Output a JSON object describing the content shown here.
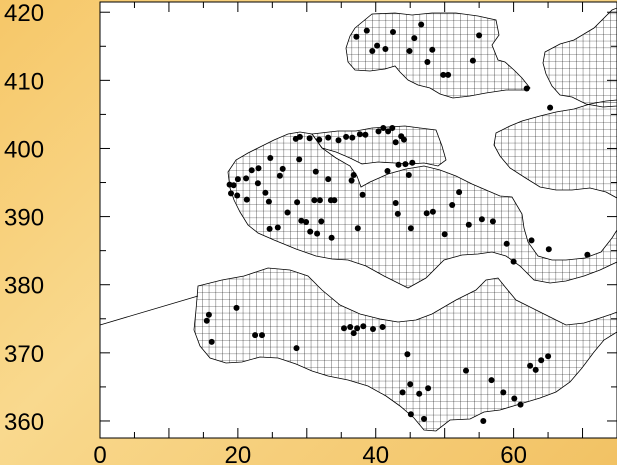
{
  "map": {
    "y_ticks": [
      {
        "value": 360,
        "label": "360"
      },
      {
        "value": 370,
        "label": "370"
      },
      {
        "value": 380,
        "label": "380"
      },
      {
        "value": 390,
        "label": "390"
      },
      {
        "value": 400,
        "label": "400"
      },
      {
        "value": 410,
        "label": "410"
      },
      {
        "value": 420,
        "label": "420"
      }
    ],
    "x_ticks": [
      {
        "value": 0,
        "label": "0"
      },
      {
        "value": 20,
        "label": "20"
      },
      {
        "value": 40,
        "label": "40"
      },
      {
        "value": 60,
        "label": "60"
      }
    ],
    "x_range": [
      0,
      75
    ],
    "y_range": [
      357.5,
      421.5
    ],
    "grid_cell_km": 1,
    "colors": {
      "frame": "#f6c768",
      "land_fill": "#ffffff",
      "grid": "#000000",
      "sites": "#000000"
    },
    "sites": [
      [
        37.2,
        416.4
      ],
      [
        38.7,
        417.3
      ],
      [
        39.5,
        414.3
      ],
      [
        40.2,
        415.1
      ],
      [
        41.4,
        414.6
      ],
      [
        42.5,
        417.1
      ],
      [
        44.9,
        414.3
      ],
      [
        45.6,
        416.2
      ],
      [
        46.6,
        418.2
      ],
      [
        47.5,
        412.7
      ],
      [
        48.2,
        414.5
      ],
      [
        49.8,
        410.8
      ],
      [
        50.5,
        410.8
      ],
      [
        54.1,
        412.9
      ],
      [
        55.0,
        416.6
      ],
      [
        61.9,
        408.8
      ],
      [
        65.3,
        406.0
      ],
      [
        28.4,
        401.4
      ],
      [
        29.0,
        401.7
      ],
      [
        30.4,
        401.5
      ],
      [
        31.8,
        401.3
      ],
      [
        33.1,
        401.6
      ],
      [
        34.6,
        401.2
      ],
      [
        35.7,
        401.7
      ],
      [
        36.6,
        401.6
      ],
      [
        37.7,
        402.1
      ],
      [
        38.5,
        402.0
      ],
      [
        40.4,
        402.5
      ],
      [
        41.1,
        403.0
      ],
      [
        41.8,
        402.5
      ],
      [
        42.4,
        403.0
      ],
      [
        43.7,
        401.8
      ],
      [
        44.1,
        401.3
      ],
      [
        42.9,
        400.9
      ],
      [
        28.9,
        398.4
      ],
      [
        26.5,
        397.0
      ],
      [
        24.7,
        398.6
      ],
      [
        23.0,
        397.1
      ],
      [
        22.0,
        396.8
      ],
      [
        21.2,
        395.6
      ],
      [
        20.0,
        395.5
      ],
      [
        19.4,
        394.6
      ],
      [
        19.0,
        393.4
      ],
      [
        18.8,
        394.7
      ],
      [
        19.9,
        393.1
      ],
      [
        21.3,
        392.5
      ],
      [
        22.9,
        394.9
      ],
      [
        24.0,
        393.5
      ],
      [
        26.1,
        396.0
      ],
      [
        31.3,
        396.6
      ],
      [
        33.1,
        395.5
      ],
      [
        36.8,
        396.1
      ],
      [
        36.5,
        395.3
      ],
      [
        43.3,
        397.6
      ],
      [
        44.3,
        397.7
      ],
      [
        45.3,
        397.9
      ],
      [
        44.8,
        396.1
      ],
      [
        41.7,
        396.7
      ],
      [
        24.5,
        392.2
      ],
      [
        24.6,
        388.2
      ],
      [
        25.8,
        388.4
      ],
      [
        27.2,
        390.6
      ],
      [
        28.6,
        392.1
      ],
      [
        29.2,
        389.4
      ],
      [
        29.9,
        389.2
      ],
      [
        31.1,
        392.4
      ],
      [
        31.9,
        392.4
      ],
      [
        33.5,
        392.4
      ],
      [
        34.0,
        392.4
      ],
      [
        30.5,
        387.8
      ],
      [
        31.5,
        387.5
      ],
      [
        32.1,
        389.3
      ],
      [
        33.6,
        386.9
      ],
      [
        37.4,
        388.3
      ],
      [
        38.1,
        393.2
      ],
      [
        42.9,
        392.0
      ],
      [
        43.2,
        390.4
      ],
      [
        45.1,
        388.3
      ],
      [
        47.4,
        390.5
      ],
      [
        48.3,
        390.7
      ],
      [
        50.0,
        387.4
      ],
      [
        51.1,
        391.7
      ],
      [
        52.1,
        393.6
      ],
      [
        53.5,
        388.8
      ],
      [
        55.4,
        389.6
      ],
      [
        57.0,
        389.3
      ],
      [
        59.0,
        386.0
      ],
      [
        60.0,
        383.4
      ],
      [
        62.6,
        386.5
      ],
      [
        65.1,
        385.2
      ],
      [
        70.7,
        384.4
      ],
      [
        15.5,
        374.7
      ],
      [
        15.8,
        375.6
      ],
      [
        16.2,
        371.6
      ],
      [
        19.8,
        376.6
      ],
      [
        22.5,
        372.6
      ],
      [
        23.5,
        372.6
      ],
      [
        28.5,
        370.7
      ],
      [
        35.4,
        373.6
      ],
      [
        36.3,
        373.8
      ],
      [
        36.8,
        372.9
      ],
      [
        37.3,
        373.6
      ],
      [
        38.2,
        373.9
      ],
      [
        39.6,
        373.5
      ],
      [
        41.0,
        373.8
      ],
      [
        44.6,
        369.8
      ],
      [
        43.9,
        364.2
      ],
      [
        45.0,
        365.4
      ],
      [
        46.3,
        364.0
      ],
      [
        47.6,
        364.8
      ],
      [
        45.1,
        361.0
      ],
      [
        47.0,
        360.3
      ],
      [
        53.1,
        367.4
      ],
      [
        55.6,
        360.0
      ],
      [
        56.8,
        366.0
      ],
      [
        58.5,
        364.2
      ],
      [
        60.1,
        363.3
      ],
      [
        61.0,
        362.4
      ],
      [
        62.4,
        368.1
      ],
      [
        63.2,
        367.5
      ],
      [
        64.0,
        368.9
      ],
      [
        65.0,
        369.5
      ]
    ]
  }
}
